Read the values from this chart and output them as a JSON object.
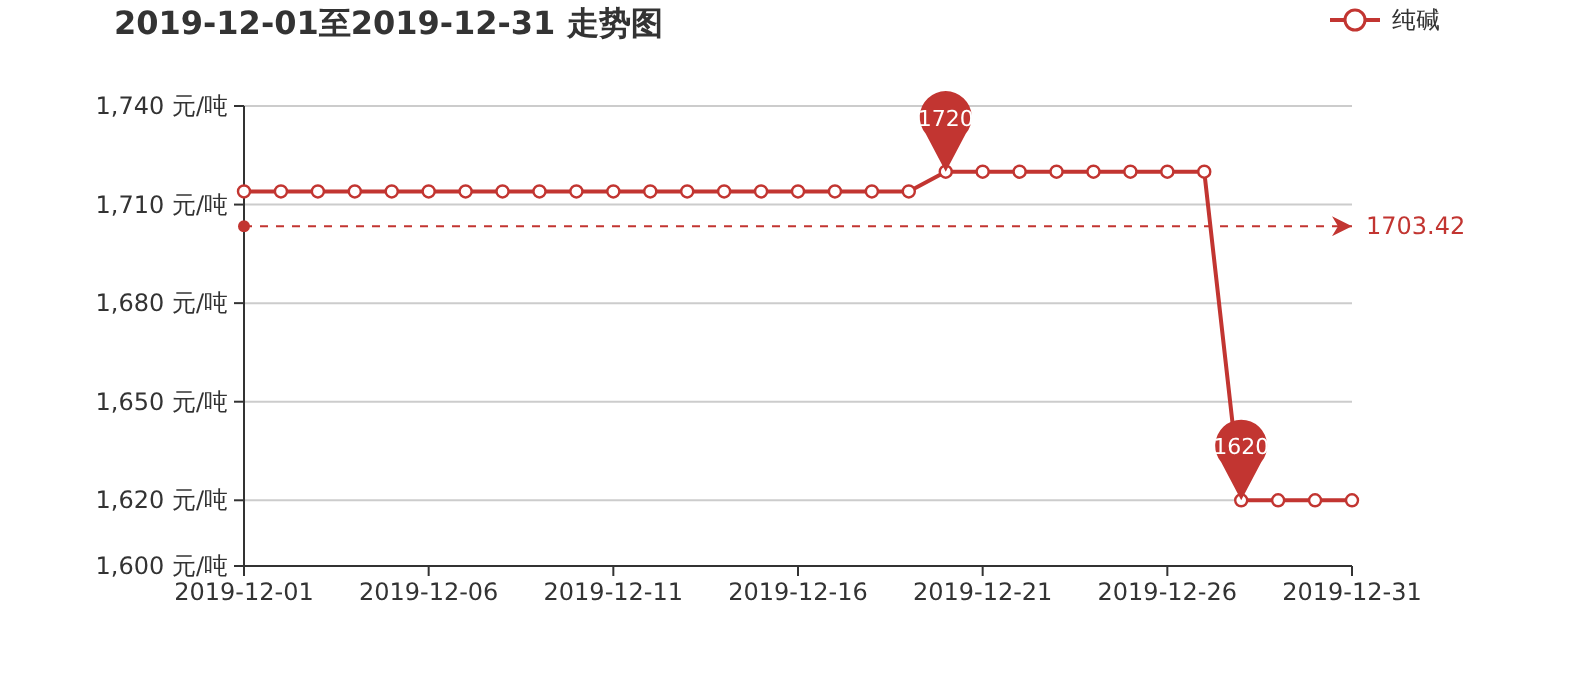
{
  "chart_data": {
    "type": "line",
    "title": "2019-12-01至2019-12-31 走势图",
    "x": [
      "2019-12-01",
      "2019-12-02",
      "2019-12-03",
      "2019-12-04",
      "2019-12-05",
      "2019-12-06",
      "2019-12-07",
      "2019-12-08",
      "2019-12-09",
      "2019-12-10",
      "2019-12-11",
      "2019-12-12",
      "2019-12-13",
      "2019-12-14",
      "2019-12-15",
      "2019-12-16",
      "2019-12-17",
      "2019-12-18",
      "2019-12-19",
      "2019-12-20",
      "2019-12-21",
      "2019-12-22",
      "2019-12-23",
      "2019-12-24",
      "2019-12-25",
      "2019-12-26",
      "2019-12-27",
      "2019-12-28",
      "2019-12-29",
      "2019-12-30",
      "2019-12-31"
    ],
    "series": [
      {
        "name": "纯碱",
        "color": "#c23531",
        "values": [
          1714,
          1714,
          1714,
          1714,
          1714,
          1714,
          1714,
          1714,
          1714,
          1714,
          1714,
          1714,
          1714,
          1714,
          1714,
          1714,
          1714,
          1714,
          1714,
          1720,
          1720,
          1720,
          1720,
          1720,
          1720,
          1720,
          1720,
          1620,
          1620,
          1620,
          1620
        ]
      }
    ],
    "xlim": [
      "2019-12-01",
      "2019-12-31"
    ],
    "xticks": [
      "2019-12-01",
      "2019-12-06",
      "2019-12-11",
      "2019-12-16",
      "2019-12-21",
      "2019-12-26",
      "2019-12-31"
    ],
    "ylim": [
      1600,
      1740
    ],
    "yticks": [
      {
        "value": 1600,
        "label": "1,600 元/吨"
      },
      {
        "value": 1620,
        "label": "1,620 元/吨"
      },
      {
        "value": 1650,
        "label": "1,650 元/吨"
      },
      {
        "value": 1680,
        "label": "1,680 元/吨"
      },
      {
        "value": 1710,
        "label": "1,710 元/吨"
      },
      {
        "value": 1740,
        "label": "1,740 元/吨"
      }
    ],
    "grid": "y",
    "legend": "top right",
    "marker": "circle",
    "line_style": "solid",
    "ref_lines": [
      {
        "axis": "y",
        "value": 1703.42,
        "label": "1703.42",
        "color": "#c23531",
        "line_style": "dashed"
      }
    ],
    "annotations": [
      {
        "text": "1720",
        "x": "2019-12-20",
        "y": 1720
      },
      {
        "text": "1620",
        "x": "2019-12-28",
        "y": 1620
      }
    ]
  }
}
